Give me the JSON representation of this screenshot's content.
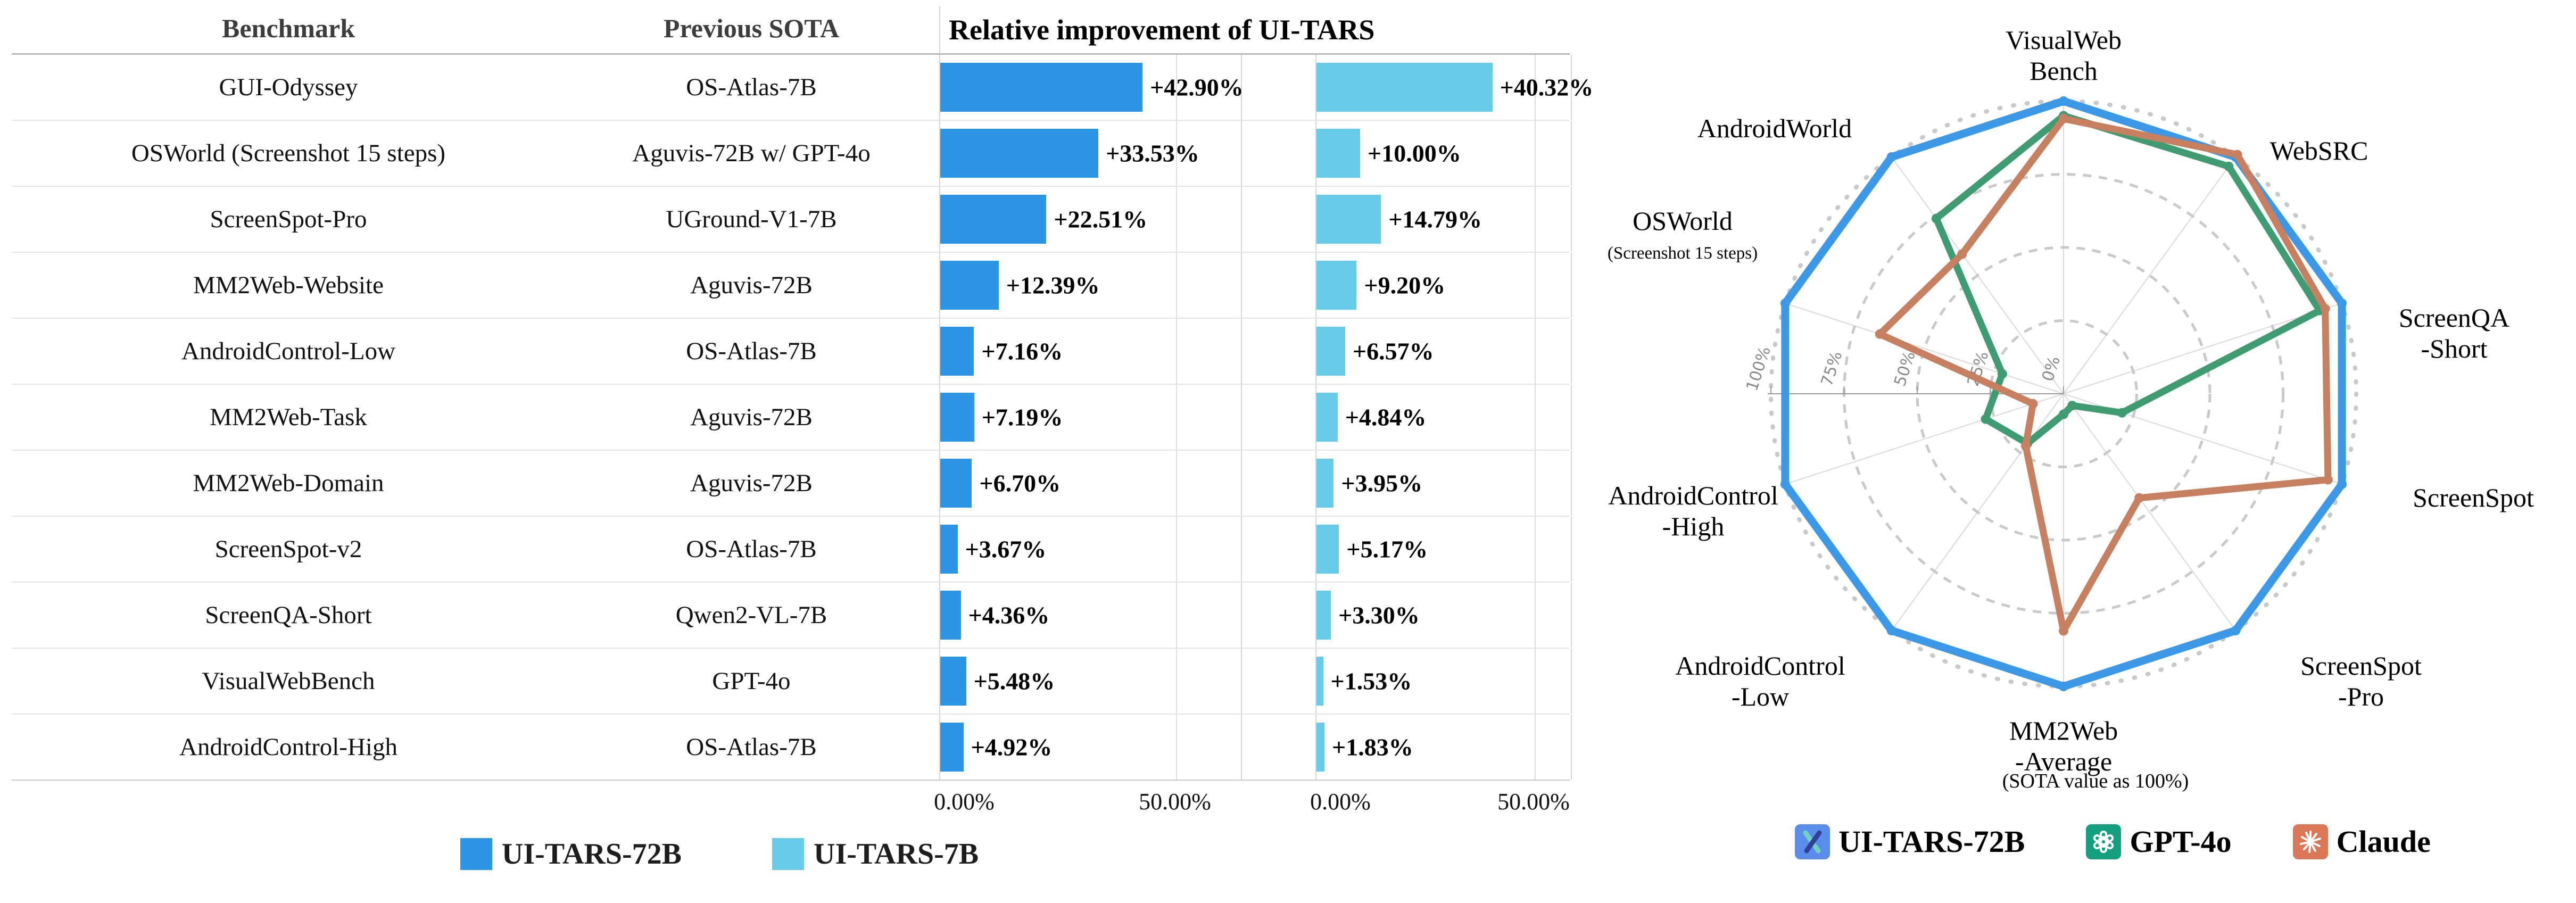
{
  "colors": {
    "tars72b_bar": "#2c95e6",
    "tars7b_bar": "#67cbe9",
    "radar_blue": "#3b99e8",
    "radar_green": "#3f9b72",
    "radar_orange": "#c67f5f",
    "grid_line": "#d4d4d4",
    "ring_dash": "#c9c9c9",
    "tick_text": "#8a8a8a",
    "tars_logo_bg": "#5a8ceb",
    "openai_logo_bg": "#14a07f",
    "claude_logo_bg": "#d97757"
  },
  "table": {
    "headers": {
      "benchmark": "Benchmark",
      "previous_sota": "Previous SOTA",
      "improvement": "Relative improvement of UI-TARS"
    },
    "rows": [
      {
        "benchmark": "GUI-Odyssey",
        "previous_sota": "OS-Atlas-7B",
        "tars72b_label": "+42.90%",
        "tars72b": 42.9,
        "tars7b_label": "+40.32%",
        "tars7b": 40.32
      },
      {
        "benchmark": "OSWorld (Screenshot 15 steps)",
        "previous_sota": "Aguvis-72B w/ GPT-4o",
        "tars72b_label": "+33.53%",
        "tars72b": 33.53,
        "tars7b_label": "+10.00%",
        "tars7b": 10.0
      },
      {
        "benchmark": "ScreenSpot-Pro",
        "previous_sota": "UGround-V1-7B",
        "tars72b_label": "+22.51%",
        "tars72b": 22.51,
        "tars7b_label": "+14.79%",
        "tars7b": 14.79
      },
      {
        "benchmark": "MM2Web-Website",
        "previous_sota": "Aguvis-72B",
        "tars72b_label": "+12.39%",
        "tars72b": 12.39,
        "tars7b_label": "+9.20%",
        "tars7b": 9.2
      },
      {
        "benchmark": "AndroidControl-Low",
        "previous_sota": "OS-Atlas-7B",
        "tars72b_label": "+7.16%",
        "tars72b": 7.16,
        "tars7b_label": "+6.57%",
        "tars7b": 6.57
      },
      {
        "benchmark": "MM2Web-Task",
        "previous_sota": "Aguvis-72B",
        "tars72b_label": "+7.19%",
        "tars72b": 7.19,
        "tars7b_label": "+4.84%",
        "tars7b": 4.84
      },
      {
        "benchmark": "MM2Web-Domain",
        "previous_sota": "Aguvis-72B",
        "tars72b_label": "+6.70%",
        "tars72b": 6.7,
        "tars7b_label": "+3.95%",
        "tars7b": 3.95
      },
      {
        "benchmark": "ScreenSpot-v2",
        "previous_sota": "OS-Atlas-7B",
        "tars72b_label": "+3.67%",
        "tars72b": 3.67,
        "tars7b_label": "+5.17%",
        "tars7b": 5.17
      },
      {
        "benchmark": "ScreenQA-Short",
        "previous_sota": "Qwen2-VL-7B",
        "tars72b_label": "+4.36%",
        "tars72b": 4.36,
        "tars7b_label": "+3.30%",
        "tars7b": 3.3
      },
      {
        "benchmark": "VisualWebBench",
        "previous_sota": "GPT-4o",
        "tars72b_label": "+5.48%",
        "tars72b": 5.48,
        "tars7b_label": "+1.53%",
        "tars7b": 1.53
      },
      {
        "benchmark": "AndroidControl-High",
        "previous_sota": "OS-Atlas-7B",
        "tars72b_label": "+4.92%",
        "tars72b": 4.92,
        "tars7b_label": "+1.83%",
        "tars7b": 1.83
      }
    ],
    "axis_ticks": [
      "0.00%",
      "50.00%"
    ],
    "legend": [
      {
        "label": "UI-TARS-72B",
        "color": "#2c95e6"
      },
      {
        "label": "UI-TARS-7B",
        "color": "#67cbe9"
      }
    ]
  },
  "radar": {
    "note": "(SOTA value as 100%)",
    "radial_tick_labels": [
      "100%",
      "75%",
      "50%",
      "25%",
      "0%"
    ],
    "legend": [
      {
        "label": "UI-TARS-72B",
        "icon": "ui-tars-logo-icon"
      },
      {
        "label": "GPT-4o",
        "icon": "openai-logo-icon"
      },
      {
        "label": "Claude",
        "icon": "claude-starburst-icon"
      }
    ]
  },
  "chart_data": [
    {
      "type": "bar",
      "orientation": "horizontal",
      "title": "Relative improvement of UI-TARS",
      "categories": [
        "GUI-Odyssey",
        "OSWorld (Screenshot 15 steps)",
        "ScreenSpot-Pro",
        "MM2Web-Website",
        "AndroidControl-Low",
        "MM2Web-Task",
        "MM2Web-Domain",
        "ScreenSpot-v2",
        "ScreenQA-Short",
        "VisualWebBench",
        "AndroidControl-High"
      ],
      "previous_sota": [
        "OS-Atlas-7B",
        "Aguvis-72B w/ GPT-4o",
        "UGround-V1-7B",
        "Aguvis-72B",
        "OS-Atlas-7B",
        "Aguvis-72B",
        "Aguvis-72B",
        "OS-Atlas-7B",
        "Qwen2-VL-7B",
        "GPT-4o",
        "OS-Atlas-7B"
      ],
      "series": [
        {
          "name": "UI-TARS-72B",
          "color": "#2c95e6",
          "values": [
            42.9,
            33.53,
            22.51,
            12.39,
            7.16,
            7.19,
            6.7,
            3.67,
            4.36,
            5.48,
            4.92
          ]
        },
        {
          "name": "UI-TARS-7B",
          "color": "#67cbe9",
          "values": [
            40.32,
            10.0,
            14.79,
            9.2,
            6.57,
            4.84,
            3.95,
            5.17,
            3.3,
            1.53,
            1.83
          ]
        }
      ],
      "xlabel": "",
      "ylabel": "",
      "xticks": [
        "0.00%",
        "50.00%"
      ],
      "xlim": [
        0,
        63.8
      ],
      "grid": true
    },
    {
      "type": "radar",
      "title": "(SOTA value as 100%)",
      "categories": [
        "VisualWebBench",
        "WebSRC",
        "ScreenQA-Short",
        "ScreenSpot",
        "ScreenSpot-Pro",
        "MM2Web-Average",
        "AndroidControl-Low",
        "AndroidControl-High",
        "OSWorld (Screenshot 15 steps)",
        "AndroidWorld"
      ],
      "axis_label_lines": [
        [
          "VisualWeb",
          "Bench"
        ],
        [
          "WebSRC"
        ],
        [
          "ScreenQA",
          "-Short"
        ],
        [
          "ScreenSpot"
        ],
        [
          "ScreenSpot",
          "-Pro"
        ],
        [
          "MM2Web",
          "-Average"
        ],
        [
          "AndroidControl",
          "-Low"
        ],
        [
          "AndroidControl",
          "-High"
        ],
        [
          "OSWorld",
          "(Screenshot 15 steps)"
        ],
        [
          "AndroidWorld"
        ]
      ],
      "radial_ticks": [
        0,
        25,
        50,
        75,
        100
      ],
      "rlim": [
        0,
        100
      ],
      "legend_position": "bottom",
      "series": [
        {
          "name": "UI-TARS-72B",
          "color": "#3b99e8",
          "values": [
            100,
            100,
            100,
            100,
            100,
            100,
            100,
            100,
            100,
            100
          ]
        },
        {
          "name": "GPT-4o",
          "color": "#3f9b72",
          "values": [
            95,
            96,
            92,
            21,
            5,
            7,
            21,
            28,
            22,
            74
          ]
        },
        {
          "name": "Claude",
          "color": "#c67f5f",
          "values": [
            94,
            101,
            94,
            95,
            44,
            81,
            22,
            11,
            66,
            59
          ]
        }
      ]
    }
  ]
}
